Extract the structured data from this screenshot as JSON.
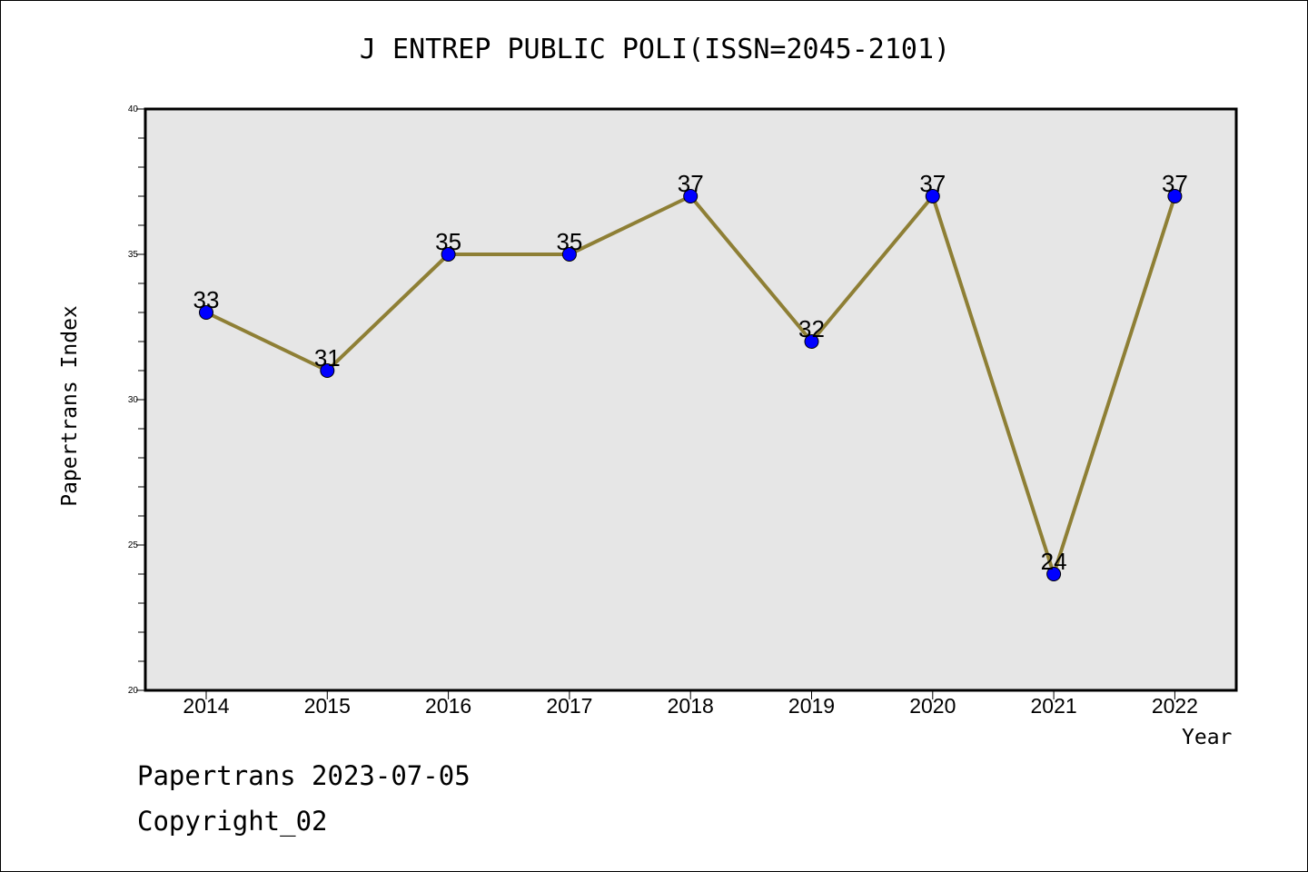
{
  "title": "J ENTREP PUBLIC POLI(ISSN=2045-2101)",
  "footer": {
    "line1": "Papertrans 2023-07-05",
    "line2": "Copyright_02"
  },
  "colors": {
    "line": "#8e7f35",
    "marker": "#0000ff",
    "plot_background": "#e6e6e6"
  },
  "chart_data": {
    "type": "line",
    "title": "J ENTREP PUBLIC POLI(ISSN=2045-2101)",
    "xlabel": "Year",
    "ylabel": "Papertrans Index",
    "categories": [
      "2014",
      "2015",
      "2016",
      "2017",
      "2018",
      "2019",
      "2020",
      "2021",
      "2022"
    ],
    "series": [
      {
        "values": [
          33,
          31,
          35,
          35,
          37,
          32,
          37,
          24,
          37
        ]
      }
    ],
    "data_labels": [
      "33",
      "31",
      "35",
      "35",
      "37",
      "32",
      "37",
      "24",
      "37"
    ],
    "ylim": [
      20,
      40
    ],
    "yticks": [
      "20",
      "25",
      "30",
      "35",
      "40"
    ],
    "grid": false,
    "legend": "none"
  }
}
